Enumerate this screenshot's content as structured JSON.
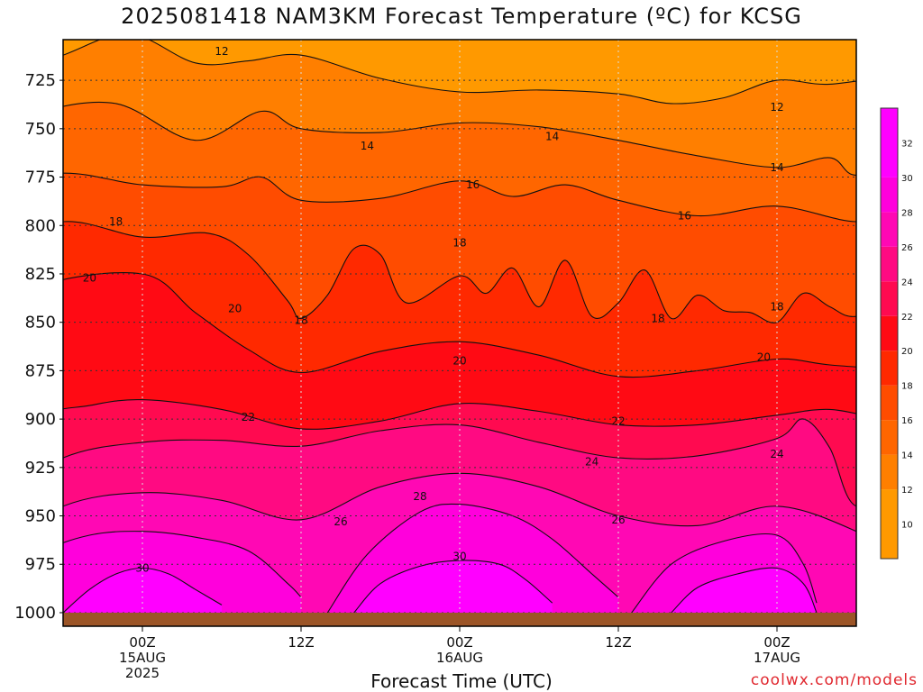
{
  "title": "2025081418 NAM3KM Forecast Temperature (ºC) for KCSG",
  "credit": "coolwx.com/models",
  "chart_data": {
    "type": "contour",
    "title": "2025081418 NAM3KM Forecast Temperature (ºC) for KCSG",
    "xlabel": "Forecast Time (UTC)",
    "ylabel": "",
    "y_axis": {
      "quantity": "pressure (hPa)",
      "ticks": [
        725,
        750,
        775,
        800,
        825,
        850,
        875,
        900,
        925,
        950,
        975,
        1000
      ],
      "range": [
        1007,
        704
      ],
      "inverted": true
    },
    "x_axis": {
      "range": [
        "2025-08-14 18Z",
        "2025-08-17 06Z"
      ],
      "ticks": [
        {
          "time": "2025-08-15 00Z",
          "lines": [
            "00Z",
            "15AUG",
            "2025"
          ]
        },
        {
          "time": "2025-08-15 12Z",
          "lines": [
            "12Z"
          ]
        },
        {
          "time": "2025-08-16 00Z",
          "lines": [
            "00Z",
            "16AUG"
          ]
        },
        {
          "time": "2025-08-16 12Z",
          "lines": [
            "12Z"
          ]
        },
        {
          "time": "2025-08-17 00Z",
          "lines": [
            "00Z",
            "17AUG"
          ]
        }
      ]
    },
    "grid": true,
    "contour_interval": 2,
    "contour_levels": [
      12,
      14,
      16,
      18,
      20,
      22,
      24,
      26,
      28,
      30
    ],
    "contour_labels": [
      {
        "time": "2025-08-15 00Z",
        "p": 977,
        "text": "30"
      },
      {
        "time": "2025-08-16 00Z",
        "p": 971,
        "text": "30"
      },
      {
        "time": "2025-08-15 15Z",
        "p": 953,
        "text": "26"
      },
      {
        "time": "2025-08-16 12Z",
        "p": 952,
        "text": "26"
      },
      {
        "time": "2025-08-15 21Z",
        "p": 940,
        "text": "28"
      },
      {
        "time": "2025-08-16 10Z",
        "p": 922,
        "text": "24"
      },
      {
        "time": "2025-08-17 00Z",
        "p": 918,
        "text": "24"
      },
      {
        "time": "2025-08-15 08Z",
        "p": 899,
        "text": "22"
      },
      {
        "time": "2025-08-16 12Z",
        "p": 901,
        "text": "22"
      },
      {
        "time": "2025-08-16 00Z",
        "p": 870,
        "text": "20"
      },
      {
        "time": "2025-08-16 23Z",
        "p": 868,
        "text": "20"
      },
      {
        "time": "2025-08-15 07Z",
        "p": 843,
        "text": "20"
      },
      {
        "time": "2025-08-14 20Z",
        "p": 827,
        "text": "20"
      },
      {
        "time": "2025-08-15 12Z",
        "p": 849,
        "text": "18"
      },
      {
        "time": "2025-08-16 15Z",
        "p": 848,
        "text": "18"
      },
      {
        "time": "2025-08-17 00Z",
        "p": 842,
        "text": "18"
      },
      {
        "time": "2025-08-16 00Z",
        "p": 809,
        "text": "18"
      },
      {
        "time": "2025-08-14 22Z",
        "p": 798,
        "text": "18"
      },
      {
        "time": "2025-08-16 17Z",
        "p": 795,
        "text": "16"
      },
      {
        "time": "2025-08-16 01Z",
        "p": 779,
        "text": "16"
      },
      {
        "time": "2025-08-17 00Z",
        "p": 770,
        "text": "14"
      },
      {
        "time": "2025-08-15 17Z",
        "p": 759,
        "text": "14"
      },
      {
        "time": "2025-08-16 07Z",
        "p": 754,
        "text": "14"
      },
      {
        "time": "2025-08-17 00Z",
        "p": 739,
        "text": "12"
      },
      {
        "time": "2025-08-15 06Z",
        "p": 710,
        "text": "12"
      }
    ],
    "contours": [
      {
        "level": 30,
        "points": [
          [
            -6,
            1000
          ],
          [
            -4,
            988
          ],
          [
            -2,
            980
          ],
          [
            0,
            977
          ],
          [
            2,
            980
          ],
          [
            4,
            988
          ],
          [
            6,
            996
          ]
        ]
      },
      {
        "level": 30,
        "points": [
          [
            16,
            1000
          ],
          [
            18,
            985
          ],
          [
            21,
            976
          ],
          [
            24,
            973
          ],
          [
            27,
            975
          ],
          [
            29,
            983
          ],
          [
            31,
            995
          ]
        ]
      },
      {
        "level": 30,
        "points": [
          [
            40,
            1000
          ],
          [
            42,
            987
          ],
          [
            45,
            980
          ],
          [
            48,
            977
          ],
          [
            50,
            985
          ],
          [
            51,
            1000
          ]
        ]
      },
      {
        "level": 28,
        "points": [
          [
            -12,
            990
          ],
          [
            -8,
            970
          ],
          [
            -4,
            960
          ],
          [
            0,
            958
          ],
          [
            4,
            961
          ],
          [
            8,
            968
          ],
          [
            11,
            985
          ],
          [
            12,
            992
          ]
        ]
      },
      {
        "level": 28,
        "points": [
          [
            14,
            1000
          ],
          [
            17,
            970
          ],
          [
            21,
            948
          ],
          [
            24,
            944
          ],
          [
            28,
            950
          ],
          [
            31,
            962
          ],
          [
            34,
            980
          ],
          [
            36,
            992
          ]
        ]
      },
      {
        "level": 28,
        "points": [
          [
            37,
            1000
          ],
          [
            40,
            975
          ],
          [
            44,
            963
          ],
          [
            48,
            960
          ],
          [
            50,
            975
          ],
          [
            51,
            995
          ]
        ]
      },
      {
        "level": 26,
        "points": [
          [
            -12,
            970
          ],
          [
            -6,
            945
          ],
          [
            0,
            938
          ],
          [
            6,
            942
          ],
          [
            12,
            952
          ],
          [
            18,
            935
          ],
          [
            24,
            928
          ],
          [
            30,
            935
          ],
          [
            36,
            950
          ],
          [
            42,
            955
          ],
          [
            48,
            945
          ],
          [
            54,
            958
          ],
          [
            58,
            975
          ]
        ]
      },
      {
        "level": 24,
        "points": [
          [
            -12,
            946
          ],
          [
            -6,
            920
          ],
          [
            0,
            912
          ],
          [
            6,
            911
          ],
          [
            12,
            914
          ],
          [
            18,
            906
          ],
          [
            24,
            903
          ],
          [
            30,
            912
          ],
          [
            36,
            920
          ],
          [
            42,
            919
          ],
          [
            48,
            910
          ],
          [
            50,
            900
          ],
          [
            52,
            915
          ],
          [
            54,
            945
          ],
          [
            58,
            932
          ]
        ]
      },
      {
        "level": 22,
        "points": [
          [
            -12,
            932
          ],
          [
            -8,
            900
          ],
          [
            -4,
            893
          ],
          [
            0,
            890
          ],
          [
            6,
            895
          ],
          [
            12,
            905
          ],
          [
            18,
            901
          ],
          [
            24,
            892
          ],
          [
            30,
            896
          ],
          [
            36,
            903
          ],
          [
            42,
            903
          ],
          [
            48,
            898
          ],
          [
            52,
            895
          ],
          [
            56,
            900
          ],
          [
            58,
            899
          ]
        ]
      },
      {
        "level": 20,
        "points": [
          [
            -12,
            858
          ],
          [
            -8,
            832
          ],
          [
            0,
            825
          ],
          [
            4,
            845
          ],
          [
            8,
            864
          ],
          [
            12,
            876
          ],
          [
            18,
            865
          ],
          [
            24,
            860
          ],
          [
            30,
            867
          ],
          [
            36,
            878
          ],
          [
            42,
            875
          ],
          [
            48,
            869
          ],
          [
            52,
            872
          ],
          [
            58,
            875
          ]
        ]
      },
      {
        "level": 18,
        "points": [
          [
            -12,
            812
          ],
          [
            -6,
            798
          ],
          [
            0,
            806
          ],
          [
            5,
            804
          ],
          [
            8,
            815
          ],
          [
            11,
            839
          ],
          [
            12,
            848
          ],
          [
            14,
            836
          ],
          [
            16,
            812
          ],
          [
            18,
            815
          ],
          [
            20,
            840
          ],
          [
            24,
            826
          ],
          [
            26,
            835
          ],
          [
            28,
            822
          ],
          [
            30,
            842
          ],
          [
            32,
            818
          ],
          [
            34,
            847
          ],
          [
            36,
            840
          ],
          [
            38,
            823
          ],
          [
            40,
            848
          ],
          [
            42,
            836
          ],
          [
            44,
            844
          ],
          [
            46,
            845
          ],
          [
            48,
            850
          ],
          [
            50,
            835
          ],
          [
            52,
            842
          ],
          [
            54,
            847
          ],
          [
            58,
            838
          ]
        ]
      },
      {
        "level": 16,
        "points": [
          [
            -12,
            781
          ],
          [
            -6,
            773
          ],
          [
            0,
            779
          ],
          [
            6,
            780
          ],
          [
            9,
            775
          ],
          [
            12,
            787
          ],
          [
            18,
            786
          ],
          [
            24,
            777
          ],
          [
            28,
            785
          ],
          [
            32,
            779
          ],
          [
            36,
            787
          ],
          [
            42,
            795
          ],
          [
            48,
            790
          ],
          [
            54,
            798
          ],
          [
            58,
            791
          ]
        ]
      },
      {
        "level": 14,
        "points": [
          [
            -12,
            757
          ],
          [
            -8,
            742
          ],
          [
            -2,
            737
          ],
          [
            4,
            756
          ],
          [
            9,
            741
          ],
          [
            12,
            750
          ],
          [
            18,
            752
          ],
          [
            24,
            747
          ],
          [
            30,
            749
          ],
          [
            36,
            756
          ],
          [
            42,
            764
          ],
          [
            48,
            770
          ],
          [
            52,
            765
          ],
          [
            54,
            774
          ],
          [
            58,
            764
          ]
        ]
      },
      {
        "level": 12,
        "points": [
          [
            -12,
            728
          ],
          [
            -6,
            712
          ],
          [
            -1,
            701
          ],
          [
            4,
            716
          ],
          [
            8,
            715
          ],
          [
            12,
            712
          ],
          [
            18,
            724
          ],
          [
            24,
            731
          ],
          [
            30,
            730
          ],
          [
            36,
            732
          ],
          [
            40,
            737
          ],
          [
            44,
            734
          ],
          [
            48,
            725
          ],
          [
            52,
            727
          ],
          [
            58,
            721
          ]
        ]
      }
    ],
    "fill_bands": [
      {
        "min": 10,
        "max": 12,
        "color": "#ff9900"
      },
      {
        "min": 12,
        "max": 14,
        "color": "#ff7f00"
      },
      {
        "min": 14,
        "max": 16,
        "color": "#ff6600"
      },
      {
        "min": 16,
        "max": 18,
        "color": "#ff4c00"
      },
      {
        "min": 18,
        "max": 20,
        "color": "#ff2900"
      },
      {
        "min": 20,
        "max": 22,
        "color": "#ff0a14"
      },
      {
        "min": 22,
        "max": 24,
        "color": "#ff0a50"
      },
      {
        "min": 24,
        "max": 26,
        "color": "#ff0a82"
      },
      {
        "min": 26,
        "max": 28,
        "color": "#ff08b4"
      },
      {
        "min": 28,
        "max": 30,
        "color": "#ff00dc"
      },
      {
        "min": 30,
        "max": 34,
        "color": "#ff00ff"
      }
    ],
    "colorbar": {
      "ticks": [
        10,
        12,
        14,
        16,
        18,
        20,
        22,
        24,
        26,
        28,
        30,
        32
      ],
      "range": [
        8,
        34
      ]
    },
    "ground_color": "#9c5527"
  }
}
